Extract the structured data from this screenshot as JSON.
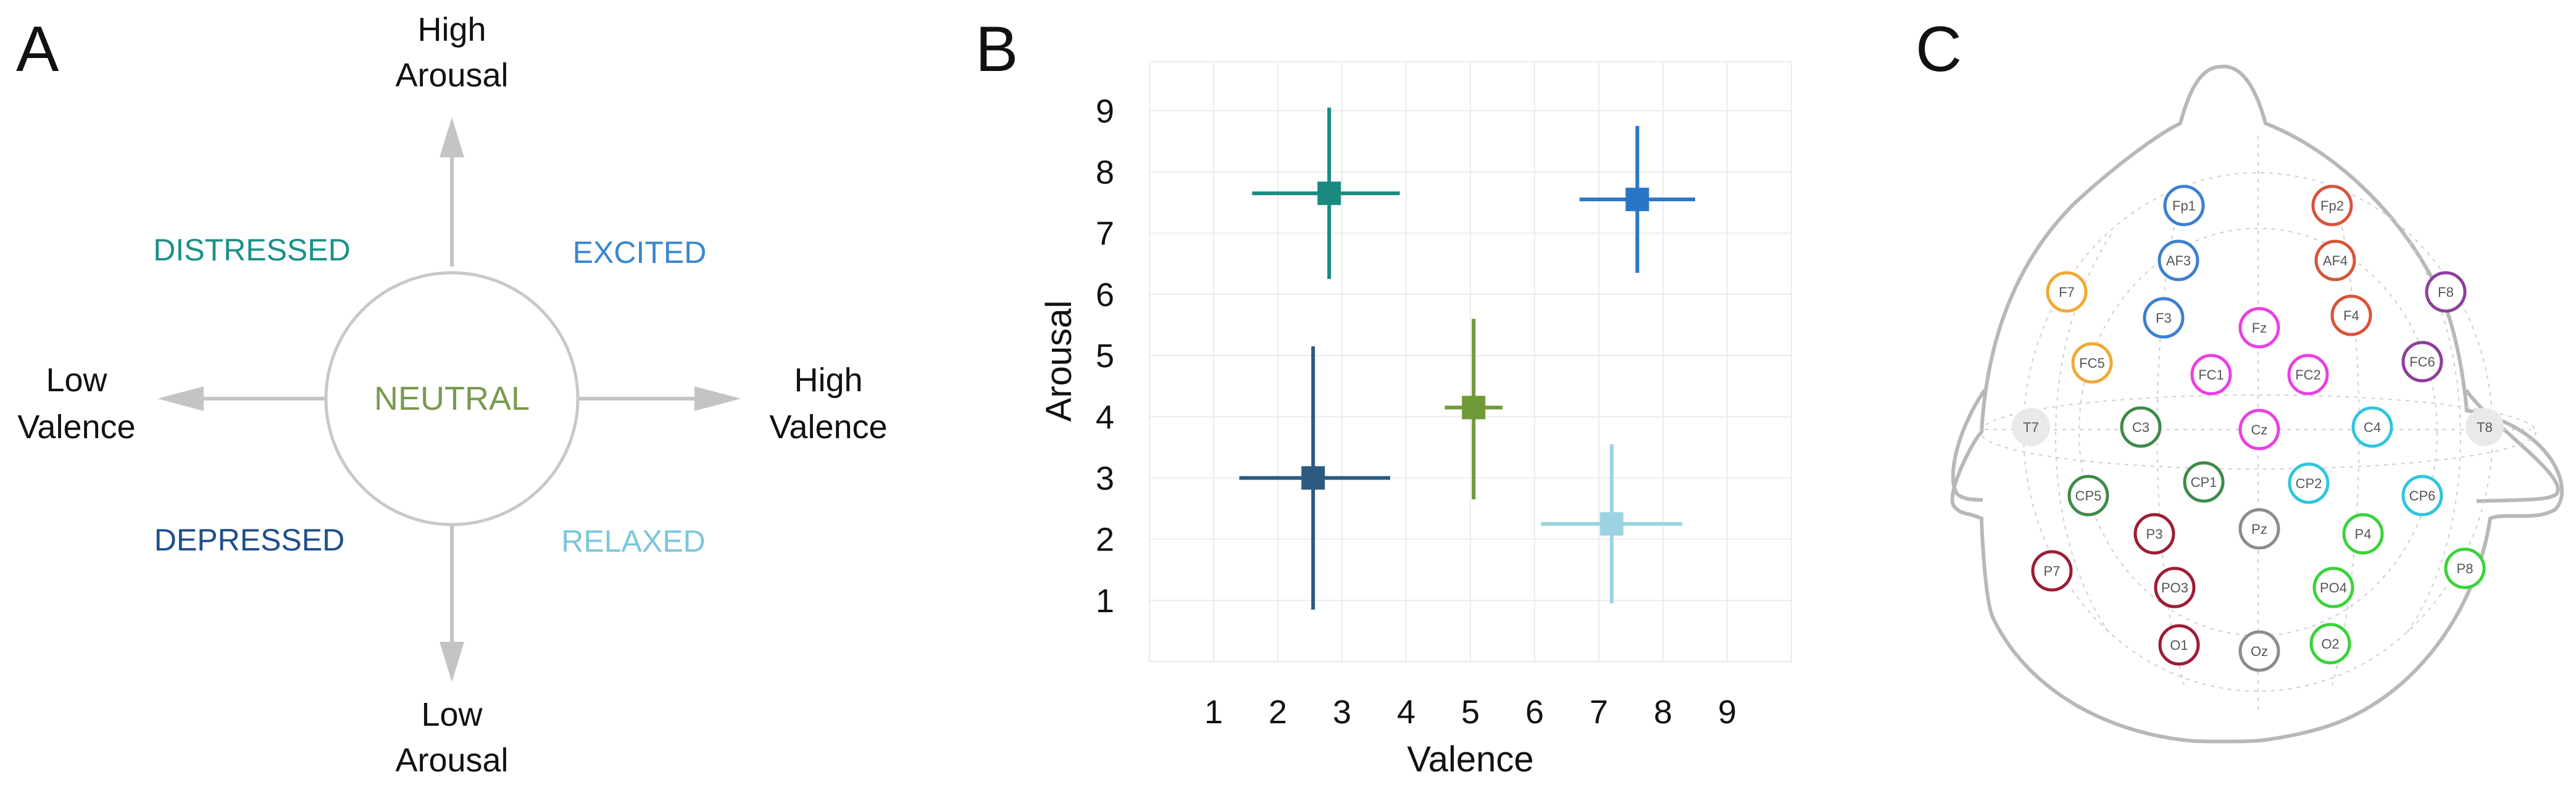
{
  "panels": {
    "a_label": "A",
    "b_label": "B",
    "c_label": "C"
  },
  "circumplex": {
    "arousal_high": [
      "High",
      "Arousal"
    ],
    "arousal_low": [
      "Low",
      "Arousal"
    ],
    "valence_low": [
      "Low",
      "Valence"
    ],
    "valence_high": [
      "High",
      "Valence"
    ],
    "center": "NEUTRAL",
    "quadrants": {
      "distressed": "DISTRESSED",
      "excited": "EXCITED",
      "depressed": "DEPRESSED",
      "relaxed": "RELAXED"
    },
    "colors": {
      "distressed": "#1a9188",
      "excited": "#3a86cf",
      "depressed": "#1f4e8c",
      "relaxed": "#7cc7dc",
      "neutral": "#7a9a4e",
      "arrows": "#c4c4c4"
    }
  },
  "chart_data": {
    "type": "scatter",
    "title": "",
    "xlabel": "Valence",
    "ylabel": "Arousal",
    "xlim": [
      0,
      10
    ],
    "ylim": [
      0,
      9.8
    ],
    "xticks": [
      1,
      2,
      3,
      4,
      5,
      6,
      7,
      8,
      9
    ],
    "yticks": [
      1,
      2,
      3,
      4,
      5,
      6,
      7,
      8,
      9
    ],
    "grid": true,
    "series": [
      {
        "name": "Distressed",
        "x": 2.8,
        "y": 7.65,
        "x_err": [
          1.2,
          1.1
        ],
        "y_err": [
          1.4,
          1.4
        ],
        "color": "#1a8a80"
      },
      {
        "name": "Excited",
        "x": 7.6,
        "y": 7.55,
        "x_err": [
          0.9,
          0.9
        ],
        "y_err": [
          1.2,
          1.2
        ],
        "color": "#2a76c6"
      },
      {
        "name": "Neutral",
        "x": 5.05,
        "y": 4.15,
        "x_err": [
          0.45,
          0.45
        ],
        "y_err": [
          1.5,
          1.45
        ],
        "color": "#6f9a3a"
      },
      {
        "name": "Depressed",
        "x": 2.55,
        "y": 3.0,
        "x_err": [
          1.15,
          1.2
        ],
        "y_err": [
          2.15,
          2.15
        ],
        "color": "#2c5a80"
      },
      {
        "name": "Relaxed",
        "x": 7.2,
        "y": 2.25,
        "x_err": [
          1.1,
          1.1
        ],
        "y_err": [
          1.3,
          1.3
        ],
        "color": "#9dd2e3"
      }
    ]
  },
  "head": {
    "electrodes": [
      {
        "label": "Fp1",
        "color": "#3d7fd0"
      },
      {
        "label": "Fp2",
        "color": "#d9533a"
      },
      {
        "label": "AF3",
        "color": "#3d7fd0"
      },
      {
        "label": "AF4",
        "color": "#d9533a"
      },
      {
        "label": "F7",
        "color": "#f0a935"
      },
      {
        "label": "F3",
        "color": "#3d7fd0"
      },
      {
        "label": "Fz",
        "color": "#ec3fe3"
      },
      {
        "label": "F4",
        "color": "#d9533a"
      },
      {
        "label": "F8",
        "color": "#8e3e9c"
      },
      {
        "label": "FC5",
        "color": "#f0a935"
      },
      {
        "label": "FC1",
        "color": "#ec3fe3"
      },
      {
        "label": "FC2",
        "color": "#ec3fe3"
      },
      {
        "label": "FC6",
        "color": "#8e3e9c"
      },
      {
        "label": "T7",
        "color": "#e6e6e6"
      },
      {
        "label": "C3",
        "color": "#3f8a4a"
      },
      {
        "label": "Cz",
        "color": "#ec3fe3"
      },
      {
        "label": "C4",
        "color": "#30c5dd"
      },
      {
        "label": "T8",
        "color": "#e6e6e6"
      },
      {
        "label": "CP5",
        "color": "#3f8a4a"
      },
      {
        "label": "CP1",
        "color": "#3f8a4a"
      },
      {
        "label": "CP2",
        "color": "#30c5dd"
      },
      {
        "label": "CP6",
        "color": "#30c5dd"
      },
      {
        "label": "P3",
        "color": "#9c1d35"
      },
      {
        "label": "Pz",
        "color": "#8c8c8c"
      },
      {
        "label": "P4",
        "color": "#3ad33a"
      },
      {
        "label": "P7",
        "color": "#9c1d35"
      },
      {
        "label": "PO3",
        "color": "#9c1d35"
      },
      {
        "label": "PO4",
        "color": "#3ad33a"
      },
      {
        "label": "P8",
        "color": "#3ad33a"
      },
      {
        "label": "O1",
        "color": "#9c1d35"
      },
      {
        "label": "Oz",
        "color": "#8c8c8c"
      },
      {
        "label": "O2",
        "color": "#3ad33a"
      }
    ]
  }
}
